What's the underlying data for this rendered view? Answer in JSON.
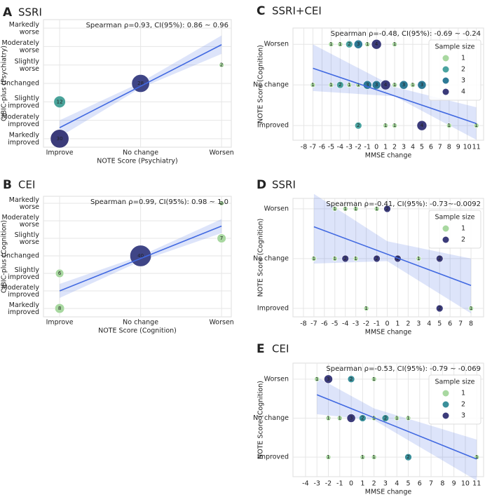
{
  "chart_data": [
    {
      "type": "bubble",
      "panel": "A",
      "title": "SSRI",
      "annotation": "Spearman ρ=0.93, CI(95%): 0.86 ~ 0.96",
      "xlabel": "NOTE Score (Psychiatry)",
      "ylabel": "CIBIC-plus (Psychiatry)",
      "x_categories": [
        "Improve",
        "No change",
        "Worsen"
      ],
      "y_categories": [
        "Markedly improved",
        "Moderately improved",
        "Slightly improved",
        "Unchanged",
        "Slightly worse",
        "Moderately worse",
        "Markedly worse"
      ],
      "xlim": [
        -0.2,
        2.12
      ],
      "ylim": [
        -0.46,
        6.46
      ],
      "grid": true,
      "points": {
        "x": [
          "Improve",
          "Improve",
          "No change",
          "Worsen"
        ],
        "y": [
          "Markedly improved",
          "Slightly improved",
          "Unchanged",
          "Slightly worse"
        ],
        "sizes": [
          30,
          12,
          28,
          2
        ],
        "colors": [
          "#3b3b7a",
          "#4aa39a",
          "#3f4586",
          "#a8d8a0"
        ]
      },
      "fit": {
        "x": [
          0,
          2
        ],
        "y": [
          0.6,
          5.1
        ],
        "color": "#4169e1"
      },
      "fit_band": {
        "x": [
          0,
          1,
          2
        ],
        "lower": [
          0.1,
          2.75,
          4.6
        ],
        "upper": [
          1.0,
          3.05,
          5.6
        ]
      }
    },
    {
      "type": "bubble",
      "panel": "B",
      "title": "CEI",
      "annotation": "Spearman ρ=0.99, CI(95%): 0.98 ~ 1.0",
      "xlabel": "NOTE Score (Cognition)",
      "ylabel": "CIBIC-plus (Cognition)",
      "x_categories": [
        "Improve",
        "No change",
        "Worsen"
      ],
      "y_categories": [
        "Markedly improved",
        "Moderately improved",
        "Slightly improved",
        "Unchanged",
        "Slightly worse",
        "Moderately worse",
        "Markedly worse"
      ],
      "xlim": [
        -0.2,
        2.12
      ],
      "ylim": [
        -0.48,
        6.4
      ],
      "grid": true,
      "points": {
        "x": [
          "Improve",
          "Improve",
          "No change",
          "Worsen",
          "Worsen"
        ],
        "y": [
          "Slightly improved",
          "Markedly improved",
          "Unchanged",
          "Markedly worse",
          "Slightly worse"
        ],
        "sizes": [
          6,
          8,
          40,
          2,
          7
        ],
        "colors": [
          "#a8d8a0",
          "#a8d8a0",
          "#3f4586",
          "#a8d8a0",
          "#a8d8a0"
        ]
      },
      "fit": {
        "x": [
          0,
          2
        ],
        "y": [
          1.0,
          4.7
        ],
        "color": "#4169e1"
      },
      "fit_band": {
        "x": [
          0,
          1,
          2
        ],
        "lower": [
          0.6,
          2.7,
          4.3
        ],
        "upper": [
          1.4,
          3.0,
          5.1
        ]
      }
    },
    {
      "type": "bubble",
      "panel": "C",
      "title": "SSRI+CEI",
      "annotation": "Spearman ρ=-0.48, CI(95%): -0.69 ~ -0.24",
      "xlabel": "MMSE change",
      "ylabel": "NOTE Score (Cognition)",
      "y_categories": [
        "Improved",
        "No change",
        "Worsen"
      ],
      "xlim": [
        -9.2,
        11.8
      ],
      "xticks": [
        -8,
        -7,
        -6,
        -5,
        -4,
        -3,
        -2,
        -1,
        0,
        1,
        2,
        3,
        4,
        5,
        6,
        7,
        8,
        9,
        10,
        11
      ],
      "ylim": [
        -0.36,
        2.4
      ],
      "grid": true,
      "points": {
        "x": [
          -5,
          -4,
          -3,
          -2,
          -1,
          0,
          2,
          -7,
          -5,
          -4,
          -3,
          -2,
          -1,
          0,
          1,
          2,
          3,
          4,
          5,
          -2,
          1,
          2,
          5,
          8,
          11
        ],
        "y": [
          "Worsen",
          "Worsen",
          "Worsen",
          "Worsen",
          "Worsen",
          "Worsen",
          "Worsen",
          "No change",
          "No change",
          "No change",
          "No change",
          "No change",
          "No change",
          "No change",
          "No change",
          "No change",
          "No change",
          "No change",
          "No change",
          "Improved",
          "Improved",
          "Improved",
          "Improved",
          "Improved",
          "Improved"
        ],
        "sizes": [
          1,
          1,
          2,
          3,
          1,
          4,
          1,
          1,
          1,
          2,
          1,
          1,
          3,
          3,
          4,
          1,
          3,
          1,
          3,
          2,
          1,
          1,
          4,
          1,
          1
        ]
      },
      "legend": {
        "title": "Sample size",
        "sizes": [
          1,
          2,
          3,
          4
        ],
        "colors": [
          "#a8d8a0",
          "#4aa3a0",
          "#2d7a96",
          "#3b3b7a"
        ],
        "position": "upper right"
      },
      "fit": {
        "x": [
          -7,
          11
        ],
        "y": [
          1.41,
          0.05
        ],
        "color": "#4169e1"
      },
      "fit_band": {
        "x": [
          -7,
          2,
          11
        ],
        "lower": [
          0.85,
          0.72,
          -0.35
        ],
        "upper": [
          2.0,
          0.95,
          0.45
        ]
      }
    },
    {
      "type": "bubble",
      "panel": "D",
      "title": "SSRI",
      "annotation": "Spearman ρ=-0.41, CI(95%): -0.73~-0.0092",
      "xlabel": "MMSE change",
      "ylabel": "NOTE Score (Cognition)",
      "y_categories": [
        "Improved",
        "No change",
        "Worsen"
      ],
      "xlim": [
        -9,
        9.2
      ],
      "xticks": [
        -8,
        -7,
        -6,
        -5,
        -4,
        -3,
        -2,
        -1,
        0,
        1,
        2,
        3,
        4,
        5,
        6,
        7,
        8
      ],
      "ylim": [
        -0.17,
        2.21
      ],
      "grid": true,
      "points": {
        "x": [
          -5,
          -4,
          -3,
          -1,
          0,
          -7,
          -5,
          -4,
          -3,
          -1,
          1,
          3,
          5,
          -2,
          5,
          8
        ],
        "y": [
          "Worsen",
          "Worsen",
          "Worsen",
          "Worsen",
          "Worsen",
          "No change",
          "No change",
          "No change",
          "No change",
          "No change",
          "No change",
          "No change",
          "No change",
          "Improved",
          "Improved",
          "Improved"
        ],
        "sizes": [
          1,
          1,
          1,
          1,
          2,
          1,
          1,
          2,
          1,
          2,
          2,
          1,
          2,
          1,
          2,
          1
        ]
      },
      "legend": {
        "title": "Sample size",
        "sizes": [
          1,
          2
        ],
        "colors": [
          "#a8d8a0",
          "#3b3b7a"
        ],
        "position": "upper right"
      },
      "fit": {
        "x": [
          -7,
          8
        ],
        "y": [
          1.64,
          0.46
        ],
        "color": "#4169e1"
      },
      "fit_band": {
        "x": [
          -7,
          0,
          8
        ],
        "lower": [
          0.9,
          0.95,
          -0.1
        ],
        "upper": [
          2.3,
          1.35,
          1.0
        ]
      }
    },
    {
      "type": "bubble",
      "panel": "E",
      "title": "CEI",
      "annotation": "Spearman ρ=-0.53, CI(95%): -0.79 ~ -0.069",
      "xlabel": "MMSE change",
      "ylabel": "NOTE Score (Cognition)",
      "y_categories": [
        "Improved",
        "No change",
        "Worsen"
      ],
      "xlim": [
        -5.1,
        11.6
      ],
      "xticks": [
        -4,
        -3,
        -2,
        -1,
        0,
        1,
        2,
        3,
        4,
        5,
        6,
        7,
        8,
        9,
        10,
        11
      ],
      "ylim": [
        -0.5,
        2.41
      ],
      "grid": true,
      "points": {
        "x": [
          -3,
          -2,
          0,
          2,
          -2,
          -1,
          0,
          1,
          2,
          3,
          4,
          5,
          -2,
          1,
          2,
          5,
          11
        ],
        "y": [
          "Worsen",
          "Worsen",
          "Worsen",
          "Worsen",
          "No change",
          "No change",
          "No change",
          "No change",
          "No change",
          "No change",
          "No change",
          "No change",
          "Improved",
          "Improved",
          "Improved",
          "Improved",
          "Improved"
        ],
        "sizes": [
          1,
          3,
          2,
          1,
          1,
          1,
          3,
          2,
          1,
          2,
          1,
          1,
          1,
          1,
          1,
          2,
          1
        ]
      },
      "legend": {
        "title": "Sample size",
        "sizes": [
          1,
          2,
          3
        ],
        "colors": [
          "#a8d8a0",
          "#3a8f9a",
          "#3b3b7a"
        ],
        "position": "upper right"
      },
      "fit": {
        "x": [
          -3,
          11
        ],
        "y": [
          1.6,
          -0.05
        ],
        "color": "#4169e1"
      },
      "fit_band": {
        "x": [
          -3,
          2,
          11
        ],
        "lower": [
          1.1,
          0.95,
          -0.6
        ],
        "upper": [
          2.05,
          1.25,
          0.45
        ]
      }
    }
  ]
}
